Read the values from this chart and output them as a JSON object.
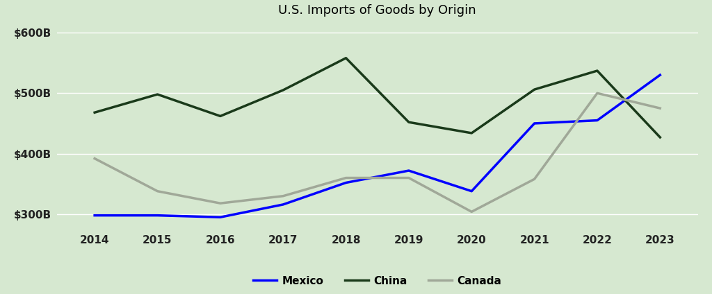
{
  "title": "U.S. Imports of Goods by Origin",
  "years": [
    2014,
    2015,
    2016,
    2017,
    2018,
    2019,
    2020,
    2021,
    2022,
    2023
  ],
  "mexico_values": [
    298,
    298,
    295,
    316,
    352,
    372,
    338,
    450,
    455,
    530
  ],
  "china_values": [
    468,
    498,
    462,
    505,
    558,
    452,
    434,
    506,
    537,
    427
  ],
  "canada_values": [
    392,
    338,
    318,
    330,
    360,
    360,
    304,
    358,
    500,
    475
  ],
  "mexico_color": "#0000ff",
  "china_color": "#1a3a1a",
  "canada_color": "#a0a898",
  "background_color": "#d6e8d0",
  "ylim": [
    275,
    615
  ],
  "yticks": [
    300,
    400,
    500,
    600
  ],
  "ytick_labels": [
    "$300B",
    "$400B",
    "$500B",
    "$600B"
  ],
  "line_width": 2.5,
  "legend_labels": [
    "Mexico",
    "China",
    "Canada"
  ],
  "grid_color": "#c0d4c0",
  "grid_linewidth": 1.0
}
